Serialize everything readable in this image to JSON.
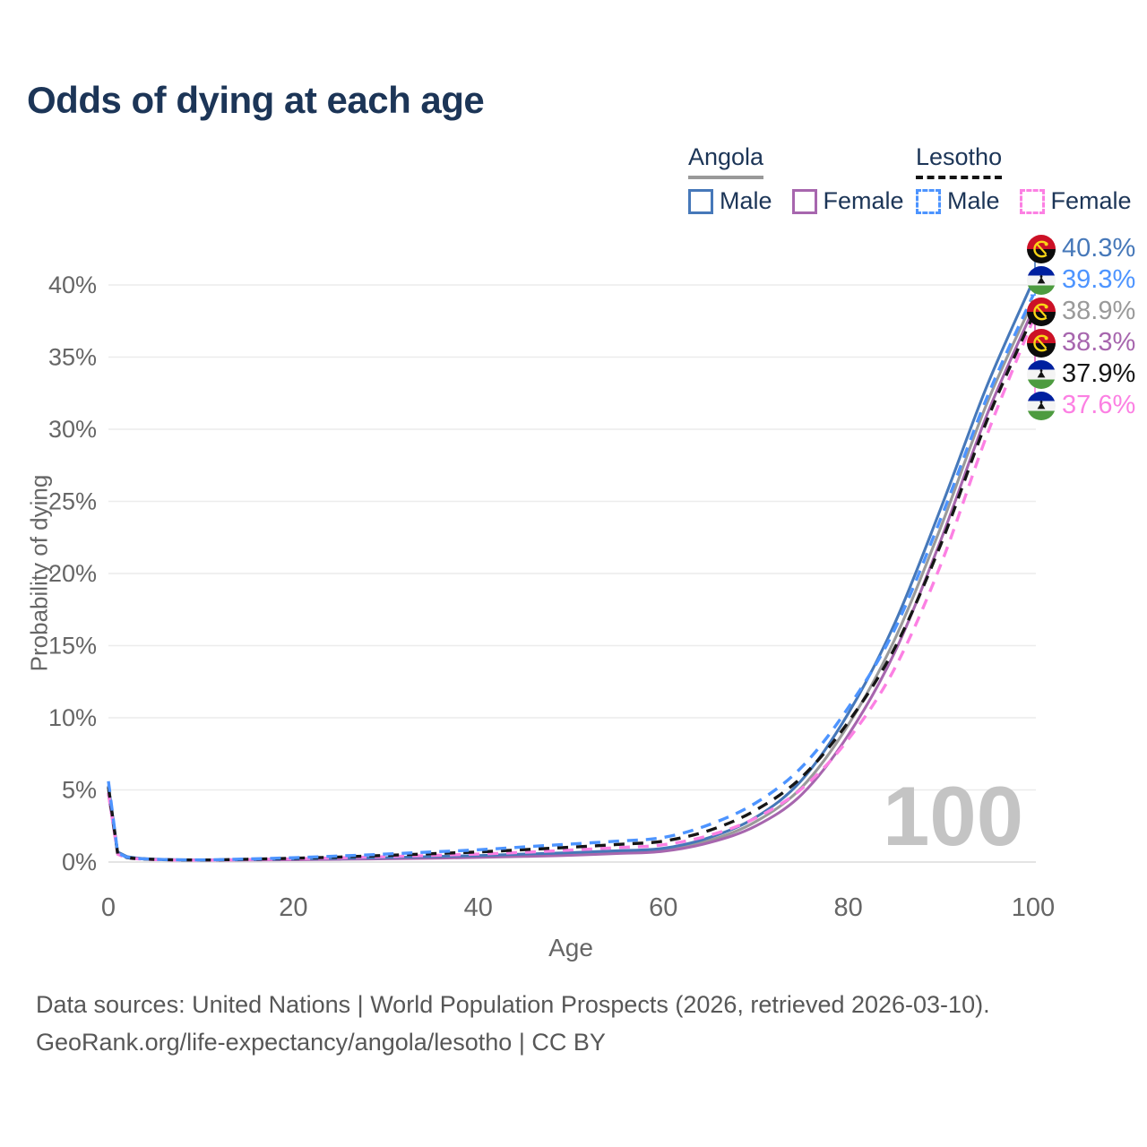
{
  "title": "Odds of dying at each age",
  "legend": {
    "groups": [
      {
        "country": "Angola",
        "line_style": "solid",
        "underline_color": "#999999",
        "items": [
          {
            "label": "Male",
            "color": "#4678b9"
          },
          {
            "label": "Female",
            "color": "#a766ae"
          }
        ]
      },
      {
        "country": "Lesotho",
        "line_style": "dashed",
        "underline_color": "#141414",
        "items": [
          {
            "label": "Male",
            "color": "#4d94ff"
          },
          {
            "label": "Female",
            "color": "#fc80e3"
          }
        ]
      }
    ]
  },
  "chart_data": {
    "type": "line",
    "title": "Odds of dying at each age",
    "xlabel": "Age",
    "ylabel": "Probability of dying",
    "xlim": [
      0,
      100
    ],
    "ylim": [
      0,
      43
    ],
    "grid": "horizontal",
    "legend_position": "top-right",
    "x_ticks": [
      0,
      20,
      40,
      60,
      80,
      100
    ],
    "y_tick_values": [
      0,
      5,
      10,
      15,
      20,
      25,
      30,
      35,
      40
    ],
    "y_tick_labels": [
      "0%",
      "5%",
      "10%",
      "15%",
      "20%",
      "25%",
      "30%",
      "35%",
      "40%"
    ],
    "age_indicator": "100",
    "x": [
      0,
      1,
      2,
      5,
      10,
      15,
      20,
      25,
      30,
      35,
      40,
      45,
      50,
      55,
      60,
      65,
      70,
      75,
      80,
      85,
      90,
      95,
      100
    ],
    "series": [
      {
        "name": "Angola Both sexes",
        "country": "Angola",
        "sex": "Both",
        "color": "#9a9a9a",
        "dash": false,
        "end_label": "38.9%",
        "values": [
          5.0,
          0.65,
          0.35,
          0.19,
          0.14,
          0.16,
          0.18,
          0.22,
          0.27,
          0.32,
          0.38,
          0.46,
          0.55,
          0.68,
          0.85,
          1.5,
          2.8,
          5.2,
          9.5,
          15.4,
          23.2,
          31.8,
          38.9
        ]
      },
      {
        "name": "Angola Female",
        "country": "Angola",
        "sex": "Female",
        "color": "#a766ae",
        "dash": false,
        "end_label": "38.3%",
        "values": [
          4.7,
          0.6,
          0.33,
          0.18,
          0.13,
          0.14,
          0.16,
          0.19,
          0.23,
          0.27,
          0.32,
          0.39,
          0.47,
          0.59,
          0.75,
          1.35,
          2.5,
          4.7,
          8.8,
          14.5,
          22.3,
          31.0,
          38.3
        ]
      },
      {
        "name": "Angola Male",
        "country": "Angola",
        "sex": "Male",
        "color": "#4678b9",
        "dash": false,
        "end_label": "40.3%",
        "values": [
          5.3,
          0.7,
          0.38,
          0.2,
          0.15,
          0.17,
          0.21,
          0.26,
          0.31,
          0.38,
          0.45,
          0.55,
          0.65,
          0.78,
          0.95,
          1.7,
          3.1,
          5.7,
          10.3,
          16.5,
          24.5,
          33.0,
          40.3
        ]
      },
      {
        "name": "Lesotho Female",
        "country": "Lesotho",
        "sex": "Female",
        "color": "#fc80e3",
        "dash": true,
        "end_label": "37.6%",
        "values": [
          4.8,
          0.54,
          0.29,
          0.17,
          0.13,
          0.17,
          0.22,
          0.29,
          0.37,
          0.46,
          0.55,
          0.68,
          0.83,
          1.0,
          1.2,
          1.85,
          3.05,
          5.1,
          8.5,
          13.4,
          20.6,
          29.6,
          37.6
        ]
      },
      {
        "name": "Lesotho Both sexes",
        "country": "Lesotho",
        "sex": "Both",
        "color": "#161616",
        "dash": true,
        "end_label": "37.9%",
        "values": [
          5.2,
          0.58,
          0.31,
          0.18,
          0.14,
          0.19,
          0.26,
          0.35,
          0.46,
          0.58,
          0.7,
          0.86,
          1.03,
          1.22,
          1.45,
          2.2,
          3.6,
          5.9,
          9.7,
          14.8,
          22.0,
          30.6,
          37.9
        ]
      },
      {
        "name": "Lesotho Male",
        "country": "Lesotho",
        "sex": "Male",
        "color": "#4d94ff",
        "dash": true,
        "end_label": "39.3%",
        "values": [
          5.6,
          0.62,
          0.33,
          0.19,
          0.15,
          0.21,
          0.3,
          0.42,
          0.55,
          0.7,
          0.85,
          1.05,
          1.25,
          1.45,
          1.7,
          2.6,
          4.1,
          6.6,
          10.7,
          16.1,
          23.8,
          32.2,
          39.3
        ]
      }
    ],
    "end_labels": [
      {
        "country": "Angola",
        "value": "40.3%",
        "color": "#4678b9"
      },
      {
        "country": "Lesotho",
        "value": "39.3%",
        "color": "#4d94ff"
      },
      {
        "country": "Angola",
        "value": "38.9%",
        "color": "#9a9a9a"
      },
      {
        "country": "Angola",
        "value": "38.3%",
        "color": "#a766ae"
      },
      {
        "country": "Lesotho",
        "value": "37.9%",
        "color": "#161616"
      },
      {
        "country": "Lesotho",
        "value": "37.6%",
        "color": "#fc80e3"
      }
    ]
  },
  "footer": {
    "line1": "Data sources: United Nations | World Population Prospects (2026, retrieved 2026-03-10).",
    "line2": "GeoRank.org/life-expectancy/angola/lesotho | CC BY"
  }
}
